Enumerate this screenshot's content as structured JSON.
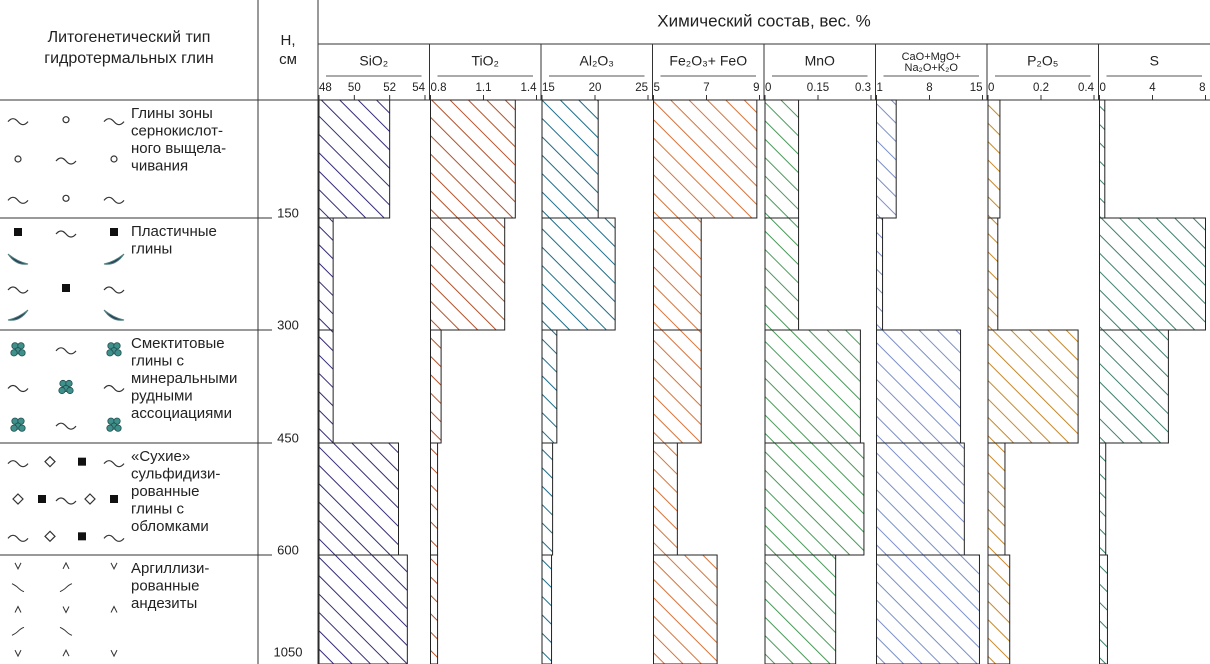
{
  "table": {
    "type_header": [
      "Литогенетический тип",
      "гидротермальных глин"
    ],
    "depth_header": [
      "H,",
      "см"
    ],
    "composition_header": "Химический состав, вес. %",
    "layers": [
      {
        "name": [
          "Глины зоны",
          "сернокислот-",
          "ного выщела-",
          "чивания"
        ],
        "depth": 150
      },
      {
        "name": [
          "Пластичные",
          "глины"
        ],
        "depth": 300
      },
      {
        "name": [
          "Смектитовые",
          "глины с",
          "минеральными",
          "рудными",
          "ассоциациями"
        ],
        "depth": 450
      },
      {
        "name": [
          "«Сухие»",
          "сульфидизи-",
          "рованные",
          "глины с",
          "обломками"
        ],
        "depth": 600
      },
      {
        "name": [
          "Аргиллизи-",
          "рованные",
          "андезиты"
        ],
        "depth": 1050
      }
    ]
  },
  "chart_data": [
    {
      "type": "bar",
      "title": [
        "SiO₂"
      ],
      "xlim": [
        48,
        54
      ],
      "xticks": [
        48,
        50,
        52,
        54
      ],
      "color": "#352c78",
      "values": [
        52,
        48.8,
        48.8,
        52.5,
        53
      ]
    },
    {
      "type": "bar",
      "title": [
        "TiO₂"
      ],
      "xlim": [
        0.8,
        1.4
      ],
      "xticks": [
        0.8,
        1.1,
        1.4
      ],
      "color": "#b4522c",
      "values": [
        1.28,
        1.22,
        0.86,
        0.84,
        0.84
      ]
    },
    {
      "type": "bar",
      "title": [
        "Al₂O₃"
      ],
      "xlim": [
        15,
        25
      ],
      "xticks": [
        15,
        20,
        25
      ],
      "color": "#1d6d8a",
      "values": [
        20.3,
        21.9,
        16.4,
        16,
        15.9
      ]
    },
    {
      "type": "bar",
      "title": [
        "Fe₂O₃+ FeO"
      ],
      "xlim": [
        5,
        9
      ],
      "xticks": [
        5,
        7,
        9
      ],
      "color": "#d8733a",
      "values": [
        8.9,
        6.8,
        6.8,
        5.9,
        7.4
      ]
    },
    {
      "type": "bar",
      "title": [
        "MnO"
      ],
      "xlim": [
        0,
        0.3
      ],
      "xticks": [
        0,
        0.15,
        0.3
      ],
      "color": "#4a9a5a",
      "values": [
        0.095,
        0.095,
        0.27,
        0.28,
        0.2
      ]
    },
    {
      "type": "bar",
      "title": [
        "CaO+MgO+",
        "Na₂O+K₂O"
      ],
      "xlim": [
        1,
        15
      ],
      "xticks": [
        1,
        8,
        15
      ],
      "color": "#7b8fc8",
      "values": [
        3.6,
        1.8,
        12.1,
        12.6,
        14.6
      ]
    },
    {
      "type": "bar",
      "title": [
        "P₂O₅"
      ],
      "xlim": [
        0,
        0.4
      ],
      "xticks": [
        0,
        0.2,
        0.4
      ],
      "color": "#c8892a",
      "values": [
        0.045,
        0.037,
        0.34,
        0.064,
        0.082
      ]
    },
    {
      "type": "bar",
      "title": [
        "S"
      ],
      "xlim": [
        0,
        8
      ],
      "xticks": [
        0,
        4,
        8
      ],
      "color": "#3f7f6e",
      "values": [
        0.4,
        8,
        5.2,
        0.47,
        0.6
      ]
    }
  ]
}
